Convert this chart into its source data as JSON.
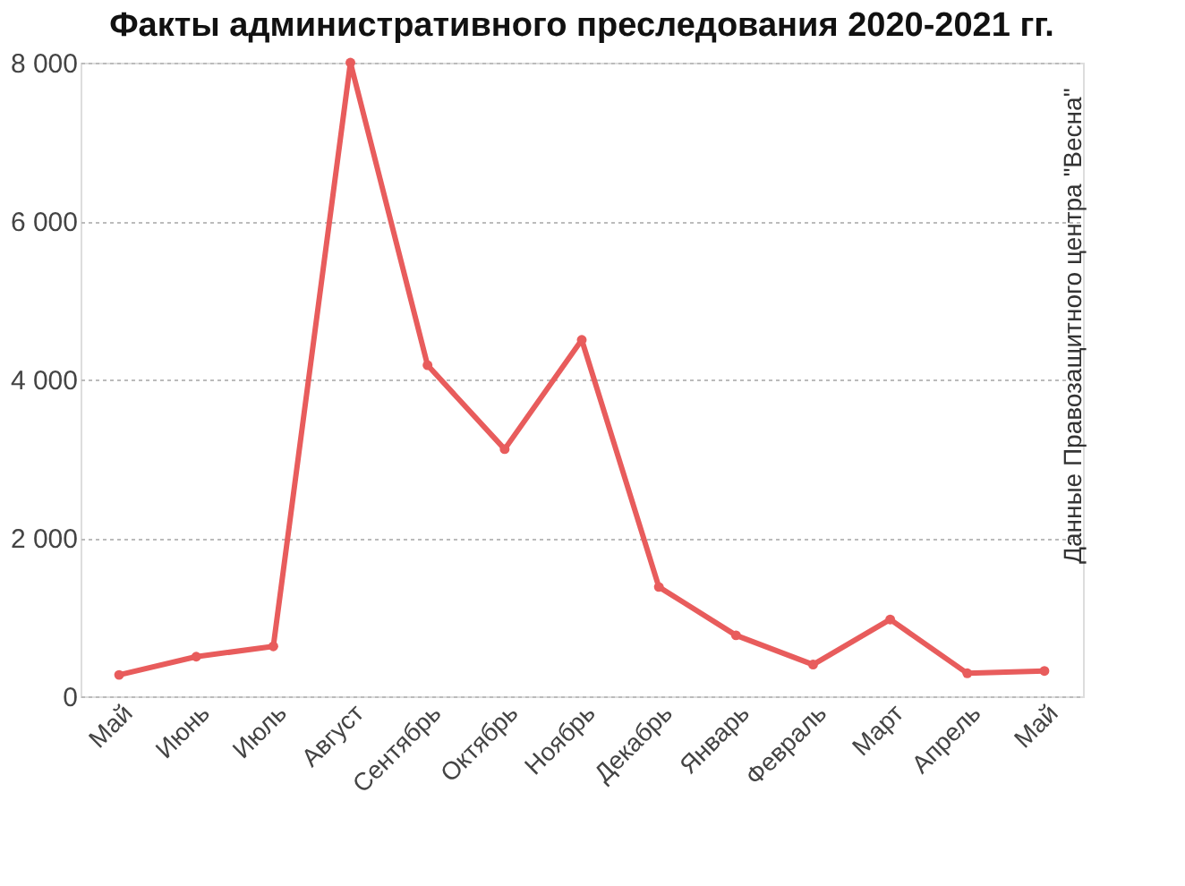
{
  "chart_data": {
    "type": "line",
    "title": "Факты административного преследования 2020-2021 гг.",
    "categories": [
      "Май",
      "Июнь",
      "Июль",
      "Август",
      "Сентябрь",
      "Октябрь",
      "Ноябрь",
      "Декабрь",
      "Январь",
      "Февраль",
      "Март",
      "Апрель",
      "Май"
    ],
    "series": [
      {
        "color": "#e85c5c",
        "values": [
          270,
          500,
          630,
          8000,
          4180,
          3120,
          4500,
          1380,
          770,
          400,
          970,
          290,
          320
        ]
      }
    ],
    "ylim": [
      0,
      8000
    ],
    "yticks": [
      {
        "value": 0,
        "label": "0"
      },
      {
        "value": 2000,
        "label": "2 000"
      },
      {
        "value": 4000,
        "label": "4 000"
      },
      {
        "value": 6000,
        "label": "6 000"
      },
      {
        "value": 8000,
        "label": "8 000"
      }
    ],
    "grid": "y",
    "marker": "circle",
    "line_style": "solid",
    "annotations": [
      "Данные Правозащитного центра \"Весна\""
    ]
  }
}
